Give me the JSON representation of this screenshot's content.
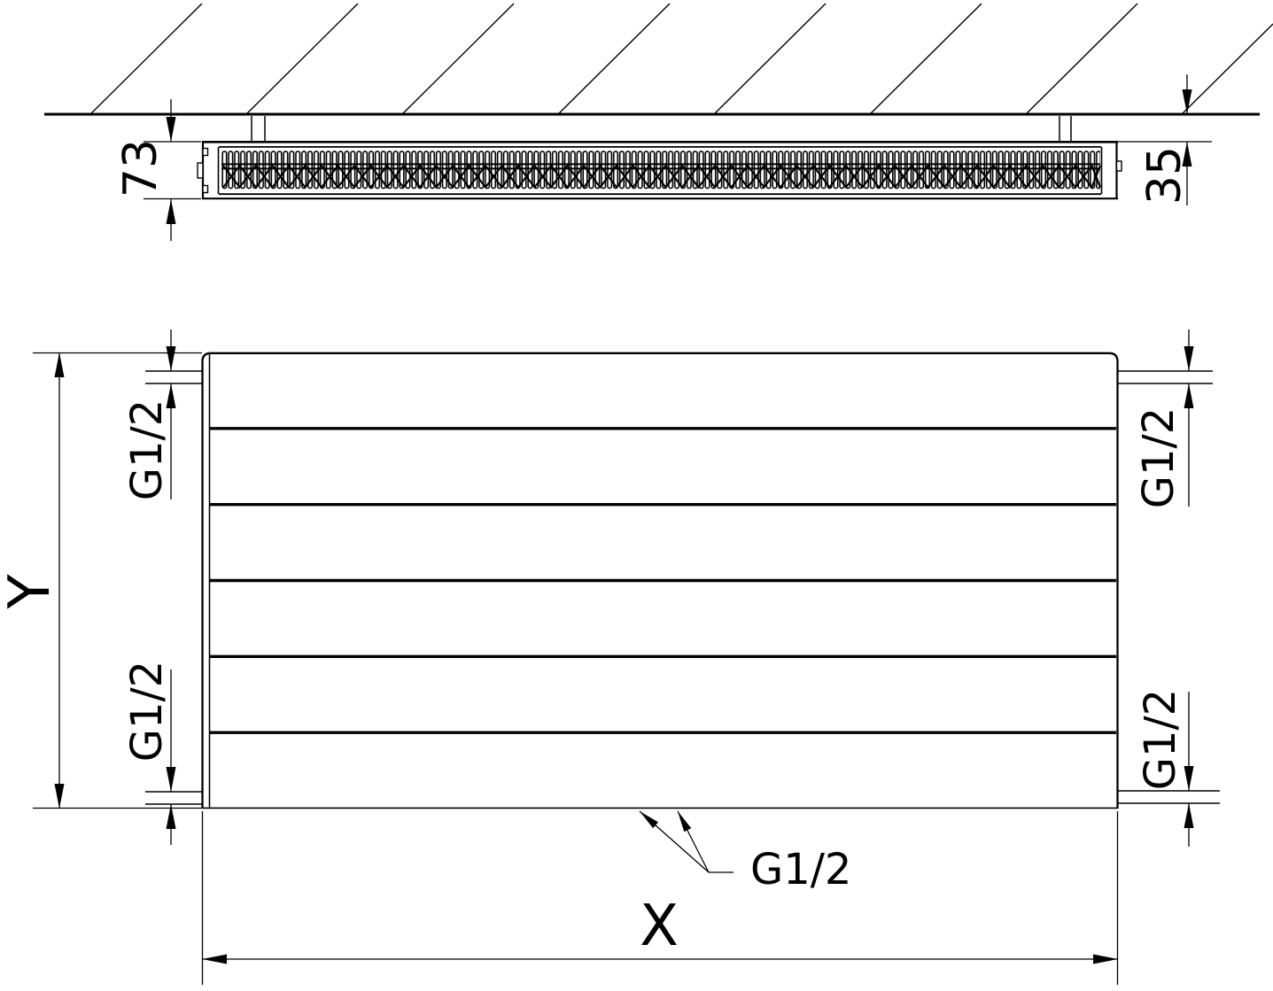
{
  "colors": {
    "ink": "#000000",
    "paper": "#ffffff"
  },
  "top_view": {
    "description": "wall cross-section with ceiling-mounted radiator seen from above",
    "depth_label": "73",
    "wall_distance_label": "35"
  },
  "front_view": {
    "description": "radiator front panel with six horizontal sections",
    "height_label": "Y",
    "width_label": "X",
    "connections": {
      "top_left": "G1/2",
      "bottom_left": "G1/2",
      "top_right": "G1/2",
      "bottom_right": "G1/2",
      "bottom_center": "G1/2"
    }
  }
}
